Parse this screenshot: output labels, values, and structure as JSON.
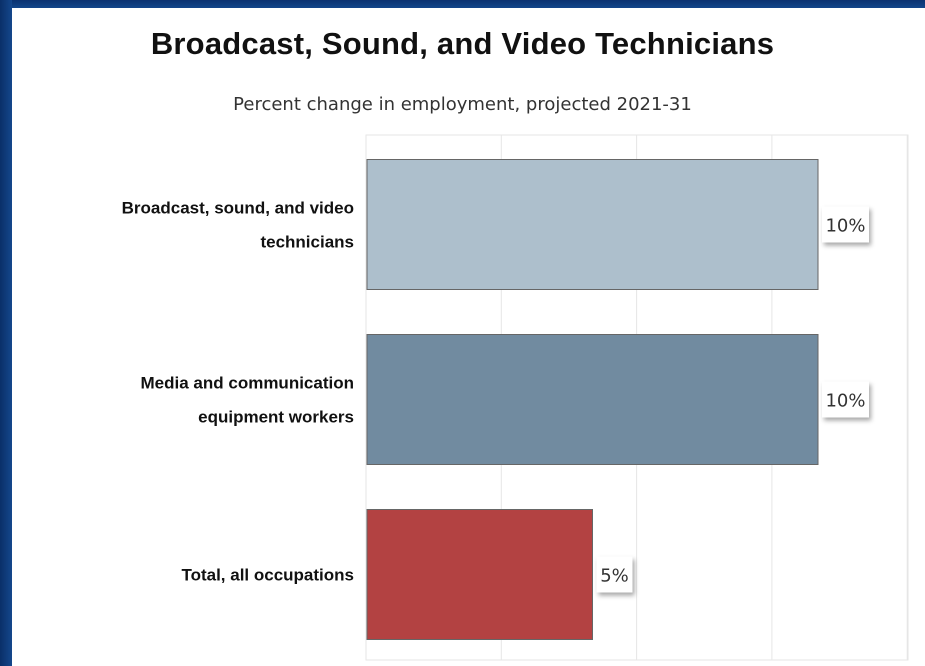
{
  "chart_data": {
    "type": "bar",
    "orientation": "horizontal",
    "title": "Broadcast, Sound, and Video Technicians",
    "subtitle": "Percent change in employment, projected 2021-31",
    "categories": [
      "Broadcast, sound, and video technicians",
      "Media and communication equipment workers",
      "Total, all occupations"
    ],
    "category_lines": [
      [
        "Broadcast, sound, and video",
        "technicians"
      ],
      [
        "Media and communication",
        "equipment workers"
      ],
      [
        "Total, all occupations"
      ]
    ],
    "values": [
      10,
      10,
      5
    ],
    "value_labels": [
      "10%",
      "10%",
      "5%"
    ],
    "bar_colors": [
      "#adbfcc",
      "#718ba0",
      "#b34242"
    ],
    "bar_border_color": "#666666",
    "xlim": [
      0,
      12
    ],
    "grid": true,
    "grid_color": "#e6e6e6",
    "legend": "none",
    "xlabel": "",
    "ylabel": ""
  }
}
